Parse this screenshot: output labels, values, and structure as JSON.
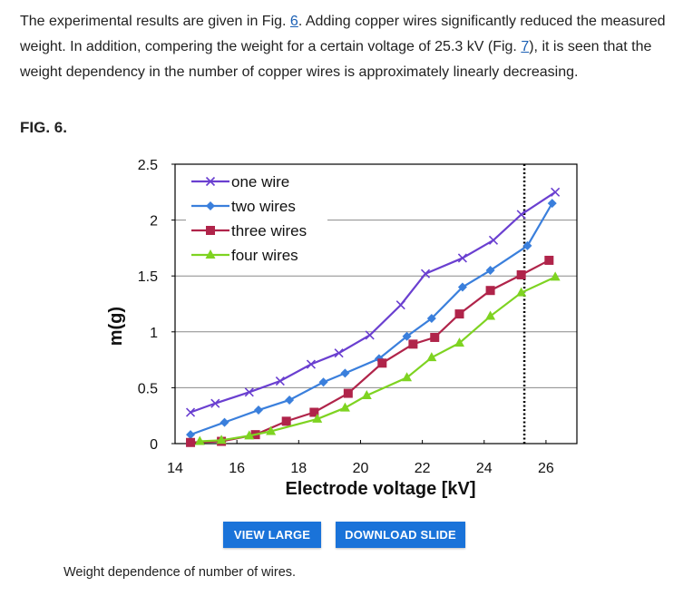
{
  "paragraph": {
    "part1": "The experimental results are given in Fig. ",
    "link1": "6",
    "part2": ". Adding copper wires significantly reduced the measured weight. In addition, compering the weight for a certain voltage of 25.3 kV (Fig. ",
    "link2": "7",
    "part3": "), it is seen that the weight dependency in the number of copper wires is approximately linearly decreasing."
  },
  "figure_label": "FIG. 6.",
  "buttons": {
    "view_large": "VIEW LARGE",
    "download_slide": "DOWNLOAD SLIDE"
  },
  "caption": "Weight dependence of number of wires.",
  "chart_data": {
    "type": "line",
    "xlabel": "Electrode voltage [kV]",
    "ylabel": "m(g)",
    "xlim": [
      14,
      27
    ],
    "ylim": [
      0,
      2.5
    ],
    "xticks": [
      "14",
      "16",
      "18",
      "20",
      "22",
      "24",
      "26"
    ],
    "yticks": [
      "0",
      "0.5",
      "1",
      "1.5",
      "2",
      "2.5"
    ],
    "legend_position": "top-left",
    "grid": "horizontal",
    "reference_line_x": 25.3,
    "series": [
      {
        "name": "one wire",
        "marker": "x",
        "color": "#6a3fd0",
        "x": [
          14.5,
          15.3,
          16.4,
          17.4,
          18.4,
          19.3,
          20.3,
          21.3,
          22.1,
          23.3,
          24.3,
          25.2,
          26.3
        ],
        "y": [
          0.28,
          0.36,
          0.46,
          0.56,
          0.71,
          0.81,
          0.97,
          1.24,
          1.52,
          1.66,
          1.82,
          2.05,
          2.25
        ]
      },
      {
        "name": "two wires",
        "marker": "diamond",
        "color": "#3a7fdc",
        "x": [
          14.5,
          15.6,
          16.7,
          17.7,
          18.8,
          19.5,
          20.6,
          21.5,
          22.3,
          23.3,
          24.2,
          25.4,
          26.2
        ],
        "y": [
          0.08,
          0.19,
          0.3,
          0.39,
          0.55,
          0.63,
          0.76,
          0.96,
          1.12,
          1.4,
          1.55,
          1.77,
          2.15
        ]
      },
      {
        "name": "three wires",
        "marker": "square",
        "color": "#b0244a",
        "x": [
          14.5,
          15.5,
          16.6,
          17.6,
          18.5,
          19.6,
          20.7,
          21.7,
          22.4,
          23.2,
          24.2,
          25.2,
          26.1
        ],
        "y": [
          0.01,
          0.02,
          0.08,
          0.2,
          0.28,
          0.45,
          0.72,
          0.89,
          0.95,
          1.16,
          1.37,
          1.51,
          1.64
        ]
      },
      {
        "name": "four wires",
        "marker": "triangle",
        "color": "#7ed321",
        "x": [
          14.8,
          15.5,
          16.4,
          17.1,
          18.6,
          19.5,
          20.2,
          21.5,
          22.3,
          23.2,
          24.2,
          25.2,
          26.3
        ],
        "y": [
          0.02,
          0.03,
          0.07,
          0.11,
          0.22,
          0.32,
          0.43,
          0.59,
          0.77,
          0.9,
          1.14,
          1.35,
          1.49
        ]
      }
    ]
  }
}
